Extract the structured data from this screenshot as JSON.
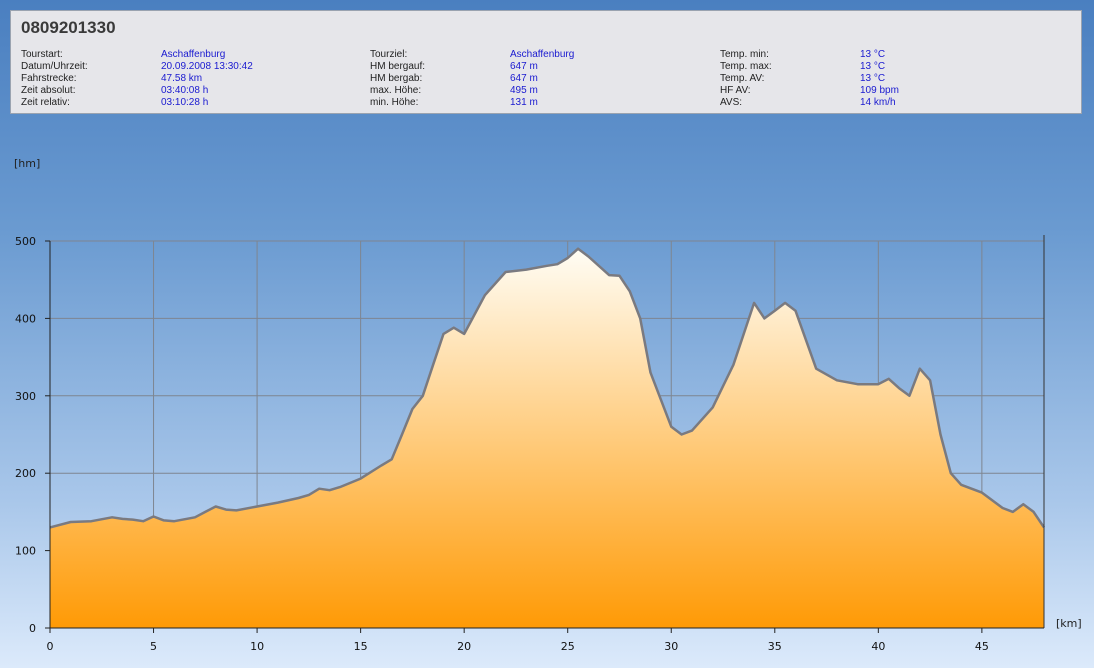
{
  "header": {
    "title": "0809201330",
    "col1": [
      {
        "label": "Tourstart:",
        "value": "Aschaffenburg"
      },
      {
        "label": "Datum/Uhrzeit:",
        "value": "20.09.2008 13:30:42"
      },
      {
        "label": "Fahrstrecke:",
        "value": "47.58 km"
      },
      {
        "label": "Zeit absolut:",
        "value": "03:40:08 h"
      },
      {
        "label": "Zeit relativ:",
        "value": "03:10:28 h"
      }
    ],
    "col2": [
      {
        "label": "Tourziel:",
        "value": "Aschaffenburg"
      },
      {
        "label": "HM bergauf:",
        "value": "647 m"
      },
      {
        "label": "HM bergab:",
        "value": "647 m"
      },
      {
        "label": "max. Höhe:",
        "value": "495 m"
      },
      {
        "label": "min. Höhe:",
        "value": "131 m"
      }
    ],
    "col3": [
      {
        "label": "Temp. min:",
        "value": "13 °C"
      },
      {
        "label": "Temp. max:",
        "value": "13 °C"
      },
      {
        "label": "Temp. AV:",
        "value": "13 °C"
      },
      {
        "label": "HF AV:",
        "value": "109 bpm"
      },
      {
        "label": "AVS:",
        "value": "14 km/h"
      }
    ]
  },
  "chart_data": {
    "type": "area",
    "ylabel": "[hm]",
    "xlabel": "[km]",
    "xlim": [
      0,
      48
    ],
    "ylim": [
      0,
      500
    ],
    "x_ticks": [
      0,
      5,
      10,
      15,
      20,
      25,
      30,
      35,
      40,
      45
    ],
    "y_ticks": [
      0,
      100,
      200,
      300,
      400,
      500
    ],
    "grid": true,
    "colors": {
      "fill_top": "#fffdf5",
      "fill_bottom": "#ff9a05",
      "line": "#7a7a80",
      "grid": "#7e8590"
    },
    "x": [
      0,
      1,
      2,
      3,
      3.5,
      4,
      4.5,
      5,
      5.5,
      6,
      7,
      7.5,
      8,
      8.5,
      9,
      10,
      11,
      12,
      12.5,
      13,
      13.5,
      14,
      15,
      16,
      16.5,
      17,
      17.5,
      18,
      18.5,
      19,
      19.5,
      20,
      21,
      22,
      23,
      24,
      24.5,
      25,
      25.5,
      26,
      27,
      27.5,
      28,
      28.5,
      29,
      30,
      30.5,
      31,
      32,
      33,
      34,
      34.5,
      35,
      35.5,
      36,
      37,
      38,
      39,
      40,
      40.5,
      41,
      41.5,
      42,
      42.5,
      43,
      43.5,
      44,
      45,
      46,
      46.5,
      47,
      47.5,
      48
    ],
    "y": [
      130,
      137,
      138,
      143,
      141,
      140,
      138,
      144,
      139,
      138,
      143,
      150,
      157,
      153,
      152,
      157,
      162,
      168,
      172,
      180,
      178,
      182,
      193,
      210,
      218,
      250,
      283,
      300,
      340,
      380,
      388,
      380,
      430,
      460,
      463,
      468,
      470,
      478,
      490,
      480,
      456,
      455,
      435,
      400,
      330,
      260,
      250,
      255,
      285,
      340,
      420,
      400,
      410,
      420,
      410,
      335,
      320,
      315,
      315,
      322,
      310,
      300,
      335,
      320,
      250,
      200,
      185,
      175,
      155,
      150,
      160,
      150,
      130
    ]
  }
}
